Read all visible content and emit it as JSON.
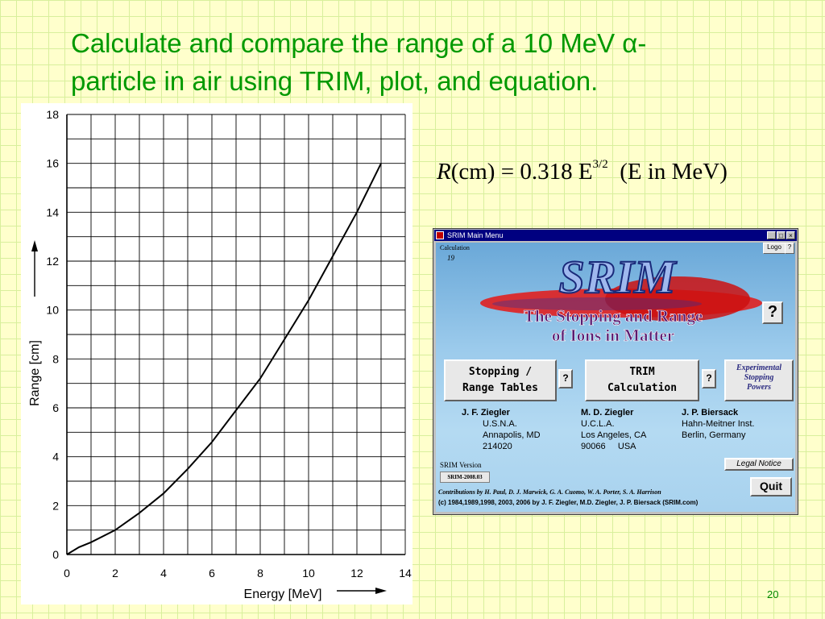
{
  "slide": {
    "title_line1": "Calculate and compare the range of a 10 MeV α-",
    "title_line2": "particle in air using TRIM, plot, and equation.",
    "equation": {
      "lhs_var": "R",
      "lhs_unit": "(cm)",
      "rhs": "= 0.318 E",
      "exponent": "3/2",
      "note": "(E in MeV)"
    },
    "page_number": "20"
  },
  "chart_data": {
    "type": "line",
    "xlabel": "Energy [MeV]",
    "ylabel": "Range [cm]",
    "xlim": [
      0,
      14
    ],
    "ylim": [
      0,
      18
    ],
    "x_ticks": [
      "0",
      "2",
      "4",
      "6",
      "8",
      "10",
      "12",
      "14"
    ],
    "y_ticks": [
      "0",
      "2",
      "4",
      "6",
      "8",
      "10",
      "12",
      "14",
      "16",
      "18"
    ],
    "grid": true,
    "series": [
      {
        "x": [
          0,
          0.5,
          1,
          2,
          3,
          4,
          5,
          6,
          7,
          8,
          9,
          10,
          11,
          12,
          13
        ],
        "y": [
          0,
          0.3,
          0.5,
          1.0,
          1.7,
          2.5,
          3.5,
          4.6,
          5.9,
          7.2,
          8.8,
          10.4,
          12.2,
          14.0,
          16.0
        ]
      }
    ]
  },
  "srim_window": {
    "title": "SRIM Main Menu",
    "controls": {
      "minimize": "_",
      "maximize": "□",
      "close": "×"
    },
    "calculation_label": "Calculation",
    "calculation_number": "19",
    "logo_button": "Logo",
    "logo_help": "?",
    "logo_text": "SRIM",
    "tagline_line1": "The Stopping and Range",
    "tagline_line2": "of Ions in Matter",
    "help_button": "?",
    "stopping_button_line1": "Stopping /",
    "stopping_button_line2": "Range Tables",
    "stopping_help": "?",
    "trim_button_line1": "TRIM",
    "trim_button_line2": "Calculation",
    "trim_help": "?",
    "experimental_line1": "Experimental",
    "experimental_line2": "Stopping",
    "experimental_line3": "Powers",
    "people": [
      {
        "name": "J. F. Ziegler",
        "line1": "U.S.N.A.",
        "line2": "Annapolis, MD",
        "line3": "214020"
      },
      {
        "name": "M. D. Ziegler",
        "line1": "U.C.L.A.",
        "line2": "Los Angeles, CA",
        "line3": "90066     USA"
      },
      {
        "name": "J. P. Biersack",
        "line1": "Hahn-Meitner Inst.",
        "line2": "Berlin, Germany",
        "line3": ""
      }
    ],
    "legal_notice": "Legal Notice",
    "version_label": "SRIM Version",
    "version": "SRIM-2008.03",
    "quit": "Quit",
    "contributions": "Contributions by H. Paul, D. J. Marwick, G. A. Cuomo, W. A. Porter, S. A. Harrison",
    "copyright": "(c) 1984,1989,1998, 2003, 2006 by J. F. Ziegler, M.D. Ziegler, J. P. Biersack (SRIM.com)"
  }
}
